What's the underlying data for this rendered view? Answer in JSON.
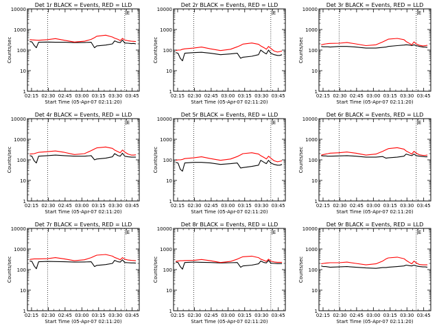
{
  "figure": {
    "ylabel": "Counts/sec",
    "xlabel": "Start Time (05-Apr-07 02:11:20)",
    "x_ticks": [
      "02:15",
      "02:30",
      "02:45",
      "03:00",
      "03:15",
      "03:30",
      "03:45"
    ],
    "y_ticks": [
      "1",
      "10",
      "100",
      "1000",
      "10000"
    ],
    "colors": {
      "events": "#000000",
      "lld": "#ff0000"
    },
    "marker_label": "E"
  },
  "chart_data": [
    {
      "type": "line",
      "title": "Det 1r BLACK = Events, RED = LLD",
      "x_unit": "minutes after 02:11:20",
      "xlim": [
        0,
        100
      ],
      "ylim": [
        1,
        10000
      ],
      "yscale": "log",
      "x": [
        2,
        4,
        6,
        8,
        10,
        18,
        25,
        33,
        42,
        51,
        57,
        60,
        62,
        70,
        76,
        78,
        81,
        83,
        85,
        87,
        90,
        93,
        95,
        97
      ],
      "series": [
        {
          "name": "Events",
          "values": [
            260,
            250,
            170,
            130,
            240,
            245,
            240,
            240,
            230,
            235,
            240,
            130,
            160,
            175,
            200,
            280,
            240,
            230,
            310,
            220,
            215,
            205,
            210,
            200
          ]
        },
        {
          "name": "LLD",
          "values": [
            320,
            315,
            310,
            305,
            300,
            320,
            360,
            300,
            245,
            270,
            330,
            400,
            470,
            530,
            430,
            380,
            330,
            290,
            370,
            310,
            285,
            270,
            265,
            260
          ]
        }
      ],
      "vlines": [
        18,
        87
      ]
    },
    {
      "type": "line",
      "title": "Det 2r BLACK = Events, RED = LLD",
      "x_unit": "minutes after 02:11:20",
      "xlim": [
        0,
        100
      ],
      "ylim": [
        1,
        10000
      ],
      "yscale": "log",
      "x": [
        2,
        4,
        6,
        8,
        10,
        18,
        25,
        33,
        42,
        51,
        57,
        60,
        62,
        70,
        76,
        78,
        81,
        83,
        85,
        87,
        90,
        93,
        95,
        97
      ],
      "series": [
        {
          "name": "Events",
          "values": [
            75,
            70,
            40,
            30,
            70,
            75,
            78,
            70,
            60,
            65,
            70,
            40,
            45,
            50,
            60,
            100,
            75,
            65,
            100,
            70,
            60,
            55,
            55,
            60
          ]
        },
        {
          "name": "LLD",
          "values": [
            95,
            100,
            100,
            110,
            115,
            125,
            140,
            115,
            95,
            110,
            145,
            170,
            195,
            220,
            190,
            160,
            130,
            110,
            150,
            120,
            90,
            80,
            85,
            90
          ]
        }
      ],
      "vlines": [
        18,
        87
      ]
    },
    {
      "type": "line",
      "title": "Det 3r BLACK = Events, RED = LLD",
      "x_unit": "minutes after 02:11:20",
      "xlim": [
        0,
        100
      ],
      "ylim": [
        1,
        10000
      ],
      "yscale": "log",
      "x": [
        2,
        4,
        6,
        8,
        10,
        18,
        25,
        33,
        42,
        51,
        57,
        60,
        62,
        70,
        76,
        78,
        81,
        83,
        85,
        87,
        90,
        93,
        95,
        97
      ],
      "series": [
        {
          "name": "Events",
          "values": [
            150,
            145,
            145,
            145,
            140,
            150,
            150,
            140,
            125,
            125,
            135,
            140,
            150,
            165,
            175,
            180,
            175,
            165,
            180,
            165,
            150,
            140,
            140,
            135
          ]
        },
        {
          "name": "LLD",
          "values": [
            180,
            190,
            200,
            205,
            210,
            215,
            235,
            200,
            165,
            180,
            250,
            300,
            340,
            370,
            320,
            260,
            210,
            180,
            250,
            200,
            170,
            160,
            165,
            170
          ]
        }
      ],
      "vlines": [
        18,
        87
      ]
    },
    {
      "type": "line",
      "title": "Det 4r BLACK = Events, RED = LLD",
      "x_unit": "minutes after 02:11:20",
      "xlim": [
        0,
        100
      ],
      "ylim": [
        1,
        10000
      ],
      "yscale": "log",
      "x": [
        2,
        4,
        6,
        8,
        10,
        18,
        25,
        33,
        42,
        51,
        57,
        60,
        62,
        70,
        76,
        78,
        81,
        83,
        85,
        87,
        90,
        93,
        95,
        97
      ],
      "series": [
        {
          "name": "Events",
          "values": [
            160,
            150,
            90,
            70,
            150,
            160,
            170,
            160,
            150,
            150,
            160,
            100,
            110,
            120,
            140,
            200,
            160,
            150,
            210,
            150,
            140,
            135,
            135,
            135
          ]
        },
        {
          "name": "LLD",
          "values": [
            190,
            195,
            200,
            215,
            230,
            250,
            270,
            230,
            180,
            200,
            280,
            340,
            380,
            420,
            360,
            300,
            250,
            220,
            300,
            240,
            190,
            170,
            170,
            175
          ]
        }
      ],
      "vlines": [
        18,
        87
      ]
    },
    {
      "type": "line",
      "title": "Det 5r BLACK = Events, RED = LLD",
      "x_unit": "minutes after 02:11:20",
      "xlim": [
        0,
        100
      ],
      "ylim": [
        1,
        10000
      ],
      "yscale": "log",
      "x": [
        2,
        4,
        6,
        8,
        10,
        18,
        25,
        33,
        42,
        51,
        57,
        60,
        62,
        70,
        76,
        78,
        81,
        83,
        85,
        87,
        90,
        93,
        95,
        97
      ],
      "series": [
        {
          "name": "Events",
          "values": [
            75,
            70,
            35,
            28,
            70,
            75,
            75,
            70,
            60,
            65,
            70,
            40,
            42,
            48,
            55,
            95,
            75,
            65,
            95,
            70,
            60,
            55,
            55,
            60
          ]
        },
        {
          "name": "LLD",
          "values": [
            95,
            100,
            100,
            105,
            115,
            125,
            140,
            115,
            95,
            110,
            145,
            175,
            200,
            220,
            190,
            160,
            130,
            110,
            150,
            120,
            90,
            80,
            85,
            90
          ]
        }
      ],
      "vlines": [
        18,
        87
      ]
    },
    {
      "type": "line",
      "title": "Det 6r BLACK = Events, RED = LLD",
      "x_unit": "minutes after 02:11:20",
      "xlim": [
        0,
        100
      ],
      "ylim": [
        1,
        10000
      ],
      "yscale": "log",
      "x": [
        2,
        4,
        6,
        8,
        10,
        18,
        25,
        33,
        42,
        51,
        57,
        60,
        62,
        70,
        76,
        78,
        81,
        83,
        85,
        87,
        90,
        93,
        95,
        97
      ],
      "series": [
        {
          "name": "Events",
          "values": [
            160,
            155,
            155,
            150,
            150,
            155,
            160,
            150,
            135,
            135,
            145,
            120,
            125,
            135,
            150,
            190,
            170,
            160,
            190,
            160,
            150,
            145,
            140,
            140
          ]
        },
        {
          "name": "LLD",
          "values": [
            170,
            180,
            190,
            200,
            210,
            220,
            240,
            210,
            170,
            190,
            260,
            310,
            350,
            390,
            330,
            270,
            220,
            190,
            260,
            210,
            175,
            165,
            165,
            170
          ]
        }
      ],
      "vlines": [
        18,
        87
      ]
    },
    {
      "type": "line",
      "title": "Det 7r BLACK = Events, RED = LLD",
      "x_unit": "minutes after 02:11:20",
      "xlim": [
        0,
        100
      ],
      "ylim": [
        1,
        10000
      ],
      "yscale": "log",
      "x": [
        2,
        4,
        6,
        8,
        10,
        18,
        25,
        33,
        42,
        51,
        57,
        60,
        62,
        70,
        76,
        78,
        81,
        83,
        85,
        87,
        90,
        93,
        95,
        97
      ],
      "series": [
        {
          "name": "Events",
          "values": [
            260,
            250,
            150,
            110,
            240,
            250,
            245,
            240,
            230,
            235,
            240,
            140,
            160,
            175,
            200,
            280,
            240,
            230,
            300,
            220,
            215,
            210,
            210,
            205
          ]
        },
        {
          "name": "LLD",
          "values": [
            310,
            320,
            330,
            330,
            330,
            340,
            380,
            330,
            270,
            300,
            380,
            450,
            500,
            540,
            450,
            390,
            340,
            300,
            380,
            320,
            290,
            280,
            275,
            270
          ]
        }
      ],
      "vlines": [
        18,
        87
      ]
    },
    {
      "type": "line",
      "title": "Det 8r BLACK = Events, RED = LLD",
      "x_unit": "minutes after 02:11:20",
      "xlim": [
        0,
        100
      ],
      "ylim": [
        1,
        10000
      ],
      "yscale": "log",
      "x": [
        2,
        4,
        6,
        8,
        10,
        18,
        25,
        33,
        42,
        51,
        57,
        60,
        62,
        70,
        76,
        78,
        81,
        83,
        85,
        87,
        90,
        93,
        95,
        97
      ],
      "series": [
        {
          "name": "Events",
          "values": [
            230,
            220,
            140,
            105,
            220,
            230,
            225,
            220,
            210,
            215,
            220,
            130,
            150,
            165,
            190,
            260,
            220,
            210,
            280,
            205,
            200,
            195,
            195,
            195
          ]
        },
        {
          "name": "LLD",
          "values": [
            250,
            260,
            270,
            270,
            275,
            280,
            310,
            270,
            220,
            250,
            320,
            380,
            420,
            450,
            380,
            320,
            280,
            250,
            320,
            260,
            235,
            225,
            225,
            225
          ]
        }
      ],
      "vlines": [
        18,
        87
      ]
    },
    {
      "type": "line",
      "title": "Det 9r BLACK = Events, RED = LLD",
      "x_unit": "minutes after 02:11:20",
      "xlim": [
        0,
        100
      ],
      "ylim": [
        1,
        10000
      ],
      "yscale": "log",
      "x": [
        2,
        4,
        6,
        8,
        10,
        18,
        25,
        33,
        42,
        51,
        57,
        60,
        62,
        70,
        76,
        78,
        81,
        83,
        85,
        87,
        90,
        93,
        95,
        97
      ],
      "series": [
        {
          "name": "Events",
          "values": [
            150,
            140,
            140,
            135,
            130,
            135,
            140,
            130,
            120,
            115,
            125,
            125,
            130,
            140,
            150,
            165,
            155,
            150,
            165,
            150,
            140,
            135,
            135,
            130
          ]
        },
        {
          "name": "LLD",
          "values": [
            190,
            200,
            205,
            210,
            215,
            215,
            230,
            200,
            170,
            190,
            260,
            330,
            370,
            400,
            340,
            280,
            220,
            190,
            260,
            210,
            175,
            170,
            170,
            170
          ]
        }
      ],
      "vlines": [
        18,
        87
      ]
    }
  ]
}
